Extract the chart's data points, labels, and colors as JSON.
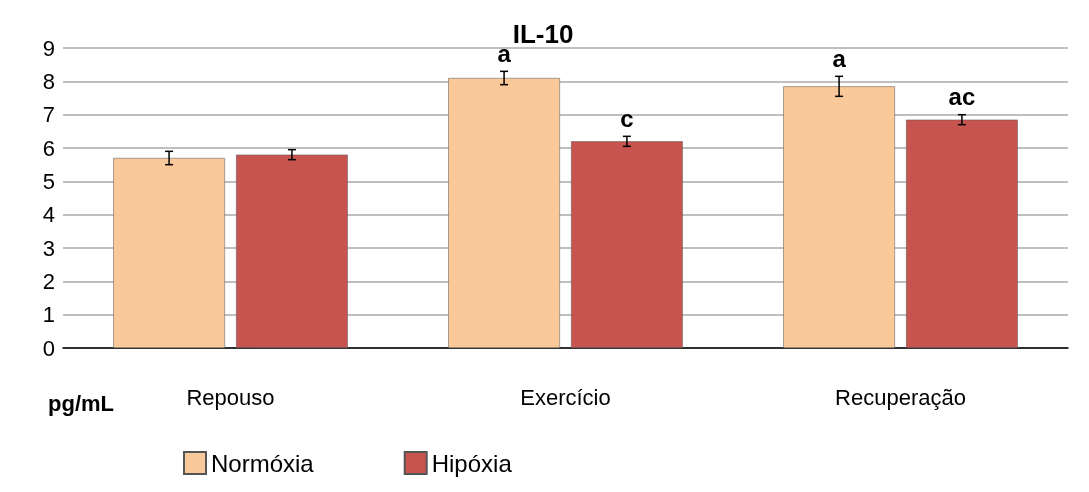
{
  "chart_data": {
    "type": "bar",
    "title": "IL-10",
    "annotations": [
      "pg/mL"
    ],
    "categories": [
      "Repouso",
      "Exercício",
      "Recuperação"
    ],
    "series": [
      {
        "name": "Normóxia",
        "color": "#f9c99a",
        "values": [
          5.7,
          8.1,
          7.85
        ],
        "errors": [
          0.2,
          0.2,
          0.3
        ],
        "value_labels": [
          null,
          "a",
          "a"
        ]
      },
      {
        "name": "Hipóxia",
        "color": "#c85450",
        "values": [
          5.8,
          6.2,
          6.85
        ],
        "errors": [
          0.15,
          0.15,
          0.15
        ],
        "value_labels": [
          null,
          "c",
          "ac"
        ]
      }
    ],
    "ylim": [
      0,
      9
    ],
    "yticks": [
      0,
      1,
      2,
      3,
      4,
      5,
      6,
      7,
      8,
      9
    ],
    "grid": "y",
    "legend": "bottom"
  }
}
